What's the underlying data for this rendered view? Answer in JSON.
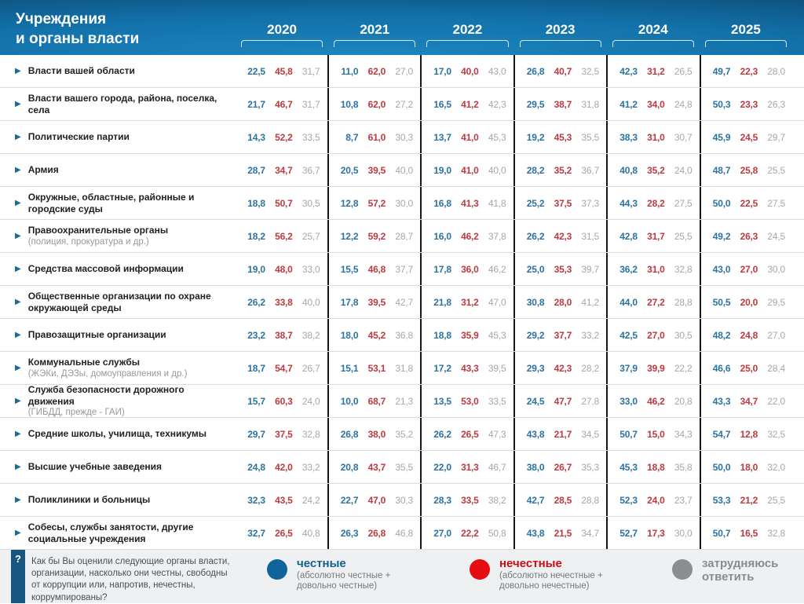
{
  "header": {
    "title_line1": "Учреждения",
    "title_line2": "и органы власти"
  },
  "icons": {
    "row_bullet": "▶",
    "question_mark": "?"
  },
  "colors": {
    "value_honest": "#2b73a1",
    "value_dishonest": "#bd3a40",
    "value_undecided": "#a5a8ab",
    "group_separator": "#161616",
    "header_blue": "#1271a9",
    "header_blue_dark": "#0a3456",
    "footer_background": "#eef0f2"
  },
  "footer": {
    "question": "Как бы Вы оценили следующие органы власти, организации, насколько они честны, свободны от коррупции или, напротив, нечестны, коррумпированы?"
  },
  "chart_data": {
    "type": "table",
    "title": "Учреждения и органы власти",
    "years": [
      "2020",
      "2021",
      "2022",
      "2023",
      "2024",
      "2025"
    ],
    "value_unit": "percent",
    "series": [
      {
        "key": "honest",
        "label": "честные",
        "sublabel": "(абсолютно честные + довольно честные)",
        "dot_color": "#11639b",
        "label_color": "#14618f"
      },
      {
        "key": "dishonest",
        "label": "нечестные",
        "sublabel": "(абсолютно нечестные + довольно нечестные)",
        "dot_color": "#e50c12",
        "label_color": "#cb0e12"
      },
      {
        "key": "undecided",
        "label": "затрудняюсь ответить",
        "sublabel": "",
        "dot_color": "#8b8e91",
        "label_color": "#898c8f"
      }
    ],
    "rows": [
      {
        "label": "Власти вашей области",
        "sublabel": "",
        "values": [
          [
            22.5,
            45.8,
            31.7
          ],
          [
            11.0,
            62.0,
            27.0
          ],
          [
            17.0,
            40.0,
            43.0
          ],
          [
            26.8,
            40.7,
            32.5
          ],
          [
            42.3,
            31.2,
            26.5
          ],
          [
            49.7,
            22.3,
            28.0
          ]
        ]
      },
      {
        "label": "Власти вашего города, района, поселка, села",
        "sublabel": "",
        "values": [
          [
            21.7,
            46.7,
            31.7
          ],
          [
            10.8,
            62.0,
            27.2
          ],
          [
            16.5,
            41.2,
            42.3
          ],
          [
            29.5,
            38.7,
            31.8
          ],
          [
            41.2,
            34.0,
            24.8
          ],
          [
            50.3,
            23.3,
            26.3
          ]
        ]
      },
      {
        "label": "Политические партии",
        "sublabel": "",
        "values": [
          [
            14.3,
            52.2,
            33.5
          ],
          [
            8.7,
            61.0,
            30.3
          ],
          [
            13.7,
            41.0,
            45.3
          ],
          [
            19.2,
            45.3,
            35.5
          ],
          [
            38.3,
            31.0,
            30.7
          ],
          [
            45.9,
            24.5,
            29.7
          ]
        ]
      },
      {
        "label": "Армия",
        "sublabel": "",
        "values": [
          [
            28.7,
            34.7,
            36.7
          ],
          [
            20.5,
            39.5,
            40.0
          ],
          [
            19.0,
            41.0,
            40.0
          ],
          [
            28.2,
            35.2,
            36.7
          ],
          [
            40.8,
            35.2,
            24.0
          ],
          [
            48.7,
            25.8,
            25.5
          ]
        ]
      },
      {
        "label": "Окружные, областные, районные и городские суды",
        "sublabel": "",
        "values": [
          [
            18.8,
            50.7,
            30.5
          ],
          [
            12.8,
            57.2,
            30.0
          ],
          [
            16.8,
            41.3,
            41.8
          ],
          [
            25.2,
            37.5,
            37.3
          ],
          [
            44.3,
            28.2,
            27.5
          ],
          [
            50.0,
            22.5,
            27.5
          ]
        ]
      },
      {
        "label": "Правоохранительные органы",
        "sublabel": "(полиция, прокуратура и др.)",
        "values": [
          [
            18.2,
            56.2,
            25.7
          ],
          [
            12.2,
            59.2,
            28.7
          ],
          [
            16.0,
            46.2,
            37.8
          ],
          [
            26.2,
            42.3,
            31.5
          ],
          [
            42.8,
            31.7,
            25.5
          ],
          [
            49.2,
            26.3,
            24.5
          ]
        ]
      },
      {
        "label": "Средства массовой информации",
        "sublabel": "",
        "values": [
          [
            19.0,
            48.0,
            33.0
          ],
          [
            15.5,
            46.8,
            37.7
          ],
          [
            17.8,
            36.0,
            46.2
          ],
          [
            25.0,
            35.3,
            39.7
          ],
          [
            36.2,
            31.0,
            32.8
          ],
          [
            43.0,
            27.0,
            30.0
          ]
        ]
      },
      {
        "label": "Общественные организации по охране окружающей среды",
        "sublabel": "",
        "values": [
          [
            26.2,
            33.8,
            40.0
          ],
          [
            17.8,
            39.5,
            42.7
          ],
          [
            21.8,
            31.2,
            47.0
          ],
          [
            30.8,
            28.0,
            41.2
          ],
          [
            44.0,
            27.2,
            28.8
          ],
          [
            50.5,
            20.0,
            29.5
          ]
        ]
      },
      {
        "label": "Правозащитные организации",
        "sublabel": "",
        "values": [
          [
            23.2,
            38.7,
            38.2
          ],
          [
            18.0,
            45.2,
            36.8
          ],
          [
            18.8,
            35.9,
            45.3
          ],
          [
            29.2,
            37.7,
            33.2
          ],
          [
            42.5,
            27.0,
            30.5
          ],
          [
            48.2,
            24.8,
            27.0
          ]
        ]
      },
      {
        "label": "Коммунальные службы",
        "sublabel": "(ЖЭКи, ДЭЗы, домоуправления и др.)",
        "values": [
          [
            18.7,
            54.7,
            26.7
          ],
          [
            15.1,
            53.1,
            31.8
          ],
          [
            17.2,
            43.3,
            39.5
          ],
          [
            29.3,
            42.3,
            28.2
          ],
          [
            37.9,
            39.9,
            22.2
          ],
          [
            46.6,
            25.0,
            28.4
          ]
        ]
      },
      {
        "label": "Служба безопасности дорожного движения",
        "sublabel": "(ГИБДД, прежде - ГАИ)",
        "values": [
          [
            15.7,
            60.3,
            24.0
          ],
          [
            10.0,
            68.7,
            21.3
          ],
          [
            13.5,
            53.0,
            33.5
          ],
          [
            24.5,
            47.7,
            27.8
          ],
          [
            33.0,
            46.2,
            20.8
          ],
          [
            43.3,
            34.7,
            22.0
          ]
        ]
      },
      {
        "label": "Средние школы, училища, техникумы",
        "sublabel": "",
        "values": [
          [
            29.7,
            37.5,
            32.8
          ],
          [
            26.8,
            38.0,
            35.2
          ],
          [
            26.2,
            26.5,
            47.3
          ],
          [
            43.8,
            21.7,
            34.5
          ],
          [
            50.7,
            15.0,
            34.3
          ],
          [
            54.7,
            12.8,
            32.5
          ]
        ]
      },
      {
        "label": "Высшие учебные заведения",
        "sublabel": "",
        "values": [
          [
            24.8,
            42.0,
            33.2
          ],
          [
            20.8,
            43.7,
            35.5
          ],
          [
            22.0,
            31.3,
            46.7
          ],
          [
            38.0,
            26.7,
            35.3
          ],
          [
            45.3,
            18.8,
            35.8
          ],
          [
            50.0,
            18.0,
            32.0
          ]
        ]
      },
      {
        "label": "Поликлиники и больницы",
        "sublabel": "",
        "values": [
          [
            32.3,
            43.5,
            24.2
          ],
          [
            22.7,
            47.0,
            30.3
          ],
          [
            28.3,
            33.5,
            38.2
          ],
          [
            42.7,
            28.5,
            28.8
          ],
          [
            52.3,
            24.0,
            23.7
          ],
          [
            53.3,
            21.2,
            25.5
          ]
        ]
      },
      {
        "label": "Собесы, службы занятости, другие социальные учреждения",
        "sublabel": "",
        "values": [
          [
            32.7,
            26.5,
            40.8
          ],
          [
            26.3,
            26.8,
            46.8
          ],
          [
            27.0,
            22.2,
            50.8
          ],
          [
            43.8,
            21.5,
            34.7
          ],
          [
            52.7,
            17.3,
            30.0
          ],
          [
            50.7,
            16.5,
            32.8
          ]
        ]
      }
    ]
  }
}
